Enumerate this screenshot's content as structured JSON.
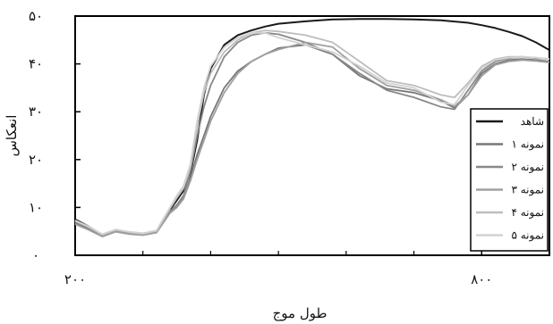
{
  "chart_data": {
    "type": "line",
    "xlabel": "طول موج",
    "ylabel": "انعکاس",
    "xlim": [
      200,
      900
    ],
    "ylim": [
      0,
      50
    ],
    "x_ticks": [
      200,
      800
    ],
    "x_tick_labels": [
      "۲۰۰",
      "۸۰۰"
    ],
    "y_ticks": [
      0,
      10,
      20,
      30,
      40,
      50
    ],
    "y_tick_labels": [
      "۰",
      "۱۰",
      "۲۰",
      "۳۰",
      "۴۰",
      "۵۰"
    ],
    "grid": false,
    "legend_position": "bottom-right",
    "series": [
      {
        "name": "شاهد",
        "color": "#1a1a1a",
        "x": [
          200,
          220,
          240,
          260,
          280,
          300,
          320,
          340,
          350,
          360,
          370,
          380,
          390,
          400,
          420,
          440,
          460,
          480,
          500,
          540,
          580,
          620,
          660,
          700,
          740,
          780,
          800,
          820,
          840,
          860,
          880,
          900
        ],
        "y": [
          7.5,
          6.0,
          4.3,
          5.3,
          4.8,
          4.5,
          5.0,
          9.5,
          11.5,
          13.5,
          17.0,
          24.0,
          33.5,
          39.0,
          44.0,
          46.0,
          47.0,
          47.8,
          48.4,
          48.9,
          49.3,
          49.4,
          49.4,
          49.3,
          49.1,
          48.6,
          48.1,
          47.5,
          46.7,
          45.8,
          44.5,
          42.9
        ]
      },
      {
        "name": "نمونه ۱",
        "color": "#777777",
        "x": [
          200,
          220,
          240,
          260,
          280,
          300,
          320,
          340,
          350,
          360,
          370,
          380,
          390,
          400,
          420,
          440,
          460,
          480,
          500,
          540,
          580,
          620,
          660,
          700,
          740,
          760,
          780,
          800,
          820,
          840,
          860,
          880,
          900
        ],
        "y": [
          6.7,
          5.5,
          4.0,
          5.0,
          4.5,
          4.3,
          4.8,
          9.0,
          10.2,
          12.0,
          16.0,
          21.0,
          25.0,
          29.0,
          35.0,
          38.5,
          40.5,
          42.0,
          43.3,
          44.0,
          42.0,
          37.5,
          34.8,
          34.0,
          32.3,
          30.8,
          33.5,
          38.0,
          40.0,
          40.8,
          41.0,
          40.8,
          40.5
        ]
      },
      {
        "name": "نمونه ۲",
        "color": "#888888",
        "x": [
          200,
          220,
          240,
          260,
          280,
          300,
          320,
          340,
          350,
          360,
          370,
          380,
          390,
          400,
          420,
          440,
          460,
          480,
          500,
          540,
          580,
          620,
          660,
          700,
          740,
          760,
          780,
          800,
          820,
          840,
          860,
          880,
          900
        ],
        "y": [
          7.0,
          5.8,
          4.2,
          5.2,
          4.7,
          4.4,
          4.9,
          9.2,
          10.5,
          12.5,
          17.5,
          25.0,
          31.0,
          35.5,
          41.5,
          44.5,
          46.0,
          46.5,
          46.2,
          44.5,
          42.0,
          38.0,
          34.5,
          33.0,
          31.0,
          30.5,
          34.5,
          38.5,
          40.5,
          41.2,
          41.5,
          41.2,
          41.0
        ]
      },
      {
        "name": "نمونه ۳",
        "color": "#a0a0a0",
        "x": [
          200,
          220,
          240,
          260,
          280,
          300,
          320,
          340,
          350,
          360,
          370,
          380,
          390,
          400,
          420,
          440,
          460,
          480,
          500,
          540,
          580,
          620,
          660,
          700,
          740,
          760,
          780,
          800,
          820,
          840,
          860,
          880,
          900
        ],
        "y": [
          6.5,
          5.3,
          3.9,
          4.9,
          4.4,
          4.2,
          4.7,
          8.8,
          10.0,
          11.8,
          15.5,
          20.0,
          24.0,
          28.0,
          34.0,
          38.0,
          40.5,
          42.0,
          43.0,
          44.5,
          43.5,
          39.0,
          35.5,
          34.5,
          32.5,
          31.2,
          33.5,
          37.5,
          39.8,
          40.5,
          40.8,
          40.6,
          40.3
        ]
      },
      {
        "name": "نمونه ۴",
        "color": "#bdbdbd",
        "x": [
          200,
          220,
          240,
          260,
          280,
          300,
          320,
          340,
          350,
          360,
          370,
          380,
          390,
          400,
          420,
          440,
          460,
          480,
          500,
          540,
          580,
          620,
          660,
          700,
          740,
          760,
          780,
          800,
          820,
          840,
          860,
          880,
          900
        ],
        "y": [
          7.2,
          5.9,
          4.3,
          5.3,
          4.8,
          4.5,
          5.1,
          9.8,
          12.0,
          14.0,
          18.5,
          27.0,
          34.0,
          38.0,
          42.5,
          45.0,
          46.5,
          47.0,
          46.8,
          46.0,
          44.5,
          40.5,
          36.5,
          35.5,
          33.5,
          33.0,
          36.0,
          39.5,
          41.0,
          41.5,
          41.5,
          41.3,
          41.0
        ]
      },
      {
        "name": "نمونه ۵",
        "color": "#d2d2d2",
        "x": [
          200,
          220,
          240,
          260,
          280,
          300,
          320,
          340,
          350,
          360,
          370,
          380,
          390,
          400,
          420,
          440,
          460,
          480,
          500,
          540,
          580,
          620,
          660,
          700,
          740,
          760,
          780,
          800,
          820,
          840,
          860,
          880,
          900
        ],
        "y": [
          7.3,
          6.0,
          4.4,
          5.4,
          4.9,
          4.6,
          5.2,
          10.0,
          12.5,
          14.5,
          19.0,
          28.0,
          35.0,
          39.5,
          43.5,
          45.5,
          46.5,
          46.5,
          45.5,
          44.0,
          42.5,
          39.5,
          36.0,
          35.0,
          32.0,
          31.5,
          35.5,
          39.0,
          40.8,
          41.3,
          41.5,
          41.3,
          41.0
        ]
      }
    ]
  }
}
